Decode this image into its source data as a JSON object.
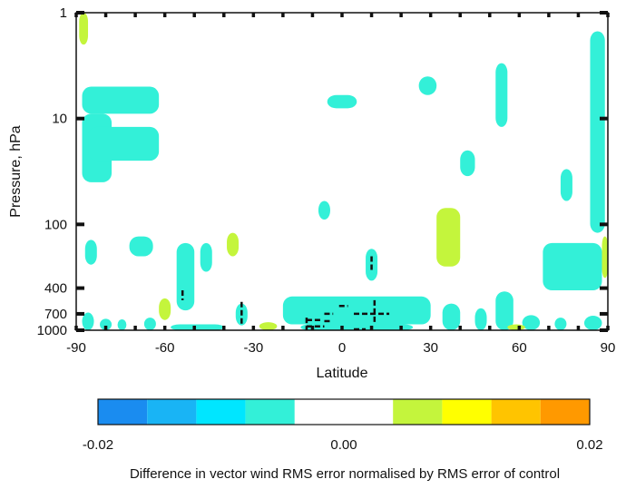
{
  "chart_data": {
    "type": "heatmap",
    "xlabel": "Latitude",
    "ylabel": "Pressure, hPa",
    "xlim": [
      -90,
      90
    ],
    "x_ticks": [
      -90,
      -60,
      -30,
      0,
      30,
      60,
      90
    ],
    "x_tick_labels": [
      "-90",
      "-60",
      "-30",
      "0",
      "30",
      "60",
      "90"
    ],
    "y_scale": "log",
    "y_inverted": true,
    "ylim": [
      1000,
      1
    ],
    "y_ticks": [
      1,
      10,
      100,
      400,
      700,
      1000
    ],
    "y_tick_labels": [
      "1",
      "10",
      "100",
      "400",
      "700",
      "1000"
    ],
    "grid": false,
    "colorbar": {
      "range": [
        -0.02,
        0.02
      ],
      "labels": [
        {
          "value": -0.02,
          "text": "-0.02"
        },
        {
          "value": 0.0,
          "text": "0.00"
        },
        {
          "value": 0.02,
          "text": "0.02"
        }
      ],
      "levels": [
        {
          "from": -0.02,
          "to": -0.016,
          "color": "#1a8cf0"
        },
        {
          "from": -0.016,
          "to": -0.012,
          "color": "#19b4f5"
        },
        {
          "from": -0.012,
          "to": -0.008,
          "color": "#00e6ff"
        },
        {
          "from": -0.008,
          "to": -0.004,
          "color": "#33f0d8"
        },
        {
          "from": -0.004,
          "to": 0.004,
          "color": "#ffffff"
        },
        {
          "from": 0.004,
          "to": 0.008,
          "color": "#c4f53c"
        },
        {
          "from": 0.008,
          "to": 0.012,
          "color": "#ffff00"
        },
        {
          "from": 0.012,
          "to": 0.016,
          "color": "#ffc400"
        },
        {
          "from": 0.016,
          "to": 0.02,
          "color": "#ff9900"
        }
      ]
    },
    "caption": "Difference in vector wind RMS error normalised by RMS error of control",
    "regions": [
      {
        "level": "cyan",
        "lat": [
          -88,
          -62
        ],
        "p": [
          5,
          9
        ]
      },
      {
        "level": "cyan",
        "lat": [
          -88,
          -78
        ],
        "p": [
          9,
          40
        ]
      },
      {
        "level": "cyan",
        "lat": [
          -86,
          -62
        ],
        "p": [
          12,
          25
        ]
      },
      {
        "level": "cyan",
        "lat": [
          -87,
          -83
        ],
        "p": [
          140,
          240
        ]
      },
      {
        "level": "cyan",
        "lat": [
          -72,
          -64
        ],
        "p": [
          130,
          200
        ]
      },
      {
        "level": "cyan",
        "lat": [
          -56,
          -50
        ],
        "p": [
          150,
          650
        ]
      },
      {
        "level": "cyan",
        "lat": [
          -48,
          -44
        ],
        "p": [
          150,
          280
        ]
      },
      {
        "level": "cyan",
        "lat": [
          -36,
          -32
        ],
        "p": [
          560,
          900
        ]
      },
      {
        "level": "cyan",
        "lat": [
          -20,
          30
        ],
        "p": [
          480,
          880
        ]
      },
      {
        "level": "cyan",
        "lat": [
          -14,
          24
        ],
        "p": [
          880,
          1000
        ]
      },
      {
        "level": "cyan",
        "lat": [
          -58,
          -40
        ],
        "p": [
          880,
          1000
        ]
      },
      {
        "level": "cyan",
        "lat": [
          -88,
          -84
        ],
        "p": [
          680,
          1000
        ]
      },
      {
        "level": "cyan",
        "lat": [
          -82,
          -78
        ],
        "p": [
          780,
          1000
        ]
      },
      {
        "level": "cyan",
        "lat": [
          -67,
          -63
        ],
        "p": [
          760,
          1000
        ]
      },
      {
        "level": "cyan",
        "lat": [
          -76,
          -73
        ],
        "p": [
          790,
          1000
        ]
      },
      {
        "level": "cyan",
        "lat": [
          34,
          40
        ],
        "p": [
          560,
          1000
        ]
      },
      {
        "level": "cyan",
        "lat": [
          45,
          49
        ],
        "p": [
          620,
          1000
        ]
      },
      {
        "level": "cyan",
        "lat": [
          52,
          58
        ],
        "p": [
          430,
          1000
        ]
      },
      {
        "level": "cyan",
        "lat": [
          61,
          67
        ],
        "p": [
          720,
          1000
        ]
      },
      {
        "level": "cyan",
        "lat": [
          72,
          76
        ],
        "p": [
          760,
          1000
        ]
      },
      {
        "level": "cyan",
        "lat": [
          82,
          88
        ],
        "p": [
          730,
          1000
        ]
      },
      {
        "level": "cyan",
        "lat": [
          68,
          88
        ],
        "p": [
          150,
          420
        ]
      },
      {
        "level": "cyan",
        "lat": [
          84,
          89
        ],
        "p": [
          1.5,
          120
        ]
      },
      {
        "level": "cyan",
        "lat": [
          52,
          56
        ],
        "p": [
          3,
          12
        ]
      },
      {
        "level": "cyan",
        "lat": [
          74,
          78
        ],
        "p": [
          30,
          60
        ]
      },
      {
        "level": "cyan",
        "lat": [
          26,
          32
        ],
        "p": [
          4,
          6
        ]
      },
      {
        "level": "cyan",
        "lat": [
          40,
          45
        ],
        "p": [
          20,
          35
        ]
      },
      {
        "level": "cyan",
        "lat": [
          8,
          12
        ],
        "p": [
          170,
          340
        ]
      },
      {
        "level": "cyan",
        "lat": [
          -5,
          5
        ],
        "p": [
          6,
          8
        ]
      },
      {
        "level": "cyan",
        "lat": [
          -8,
          -4
        ],
        "p": [
          60,
          90
        ]
      },
      {
        "level": "lime",
        "lat": [
          -89,
          -86
        ],
        "p": [
          1,
          2
        ]
      },
      {
        "level": "lime",
        "lat": [
          -39,
          -35
        ],
        "p": [
          120,
          200
        ]
      },
      {
        "level": "lime",
        "lat": [
          -62,
          -58
        ],
        "p": [
          500,
          800
        ]
      },
      {
        "level": "lime",
        "lat": [
          -28,
          -22
        ],
        "p": [
          840,
          1000
        ]
      },
      {
        "level": "lime",
        "lat": [
          32,
          40
        ],
        "p": [
          70,
          250
        ]
      },
      {
        "level": "lime",
        "lat": [
          56,
          62
        ],
        "p": [
          880,
          1000
        ]
      },
      {
        "level": "lime",
        "lat": [
          88,
          90
        ],
        "p": [
          130,
          320
        ]
      }
    ],
    "contour_lines": [
      {
        "lat": [
          -34,
          -34
        ],
        "p": [
          540,
          900
        ]
      },
      {
        "lat": [
          -12,
          -12
        ],
        "p": [
          760,
          1000
        ]
      },
      {
        "lat": [
          -12,
          -7
        ],
        "p": [
          800,
          800
        ]
      },
      {
        "lat": [
          -12,
          -6
        ],
        "p": [
          920,
          920
        ]
      },
      {
        "lat": [
          11,
          11
        ],
        "p": [
          520,
          880
        ]
      },
      {
        "lat": [
          4,
          16
        ],
        "p": [
          700,
          700
        ]
      },
      {
        "lat": [
          -6,
          -3
        ],
        "p": [
          700,
          700
        ]
      },
      {
        "lat": [
          -1,
          2
        ],
        "p": [
          590,
          590
        ]
      },
      {
        "lat": [
          -6,
          -4
        ],
        "p": [
          820,
          820
        ]
      },
      {
        "lat": [
          4,
          8
        ],
        "p": [
          980,
          980
        ]
      },
      {
        "lat": [
          -54,
          -54
        ],
        "p": [
          420,
          520
        ]
      },
      {
        "lat": [
          10,
          10
        ],
        "p": [
          200,
          280
        ]
      }
    ]
  }
}
